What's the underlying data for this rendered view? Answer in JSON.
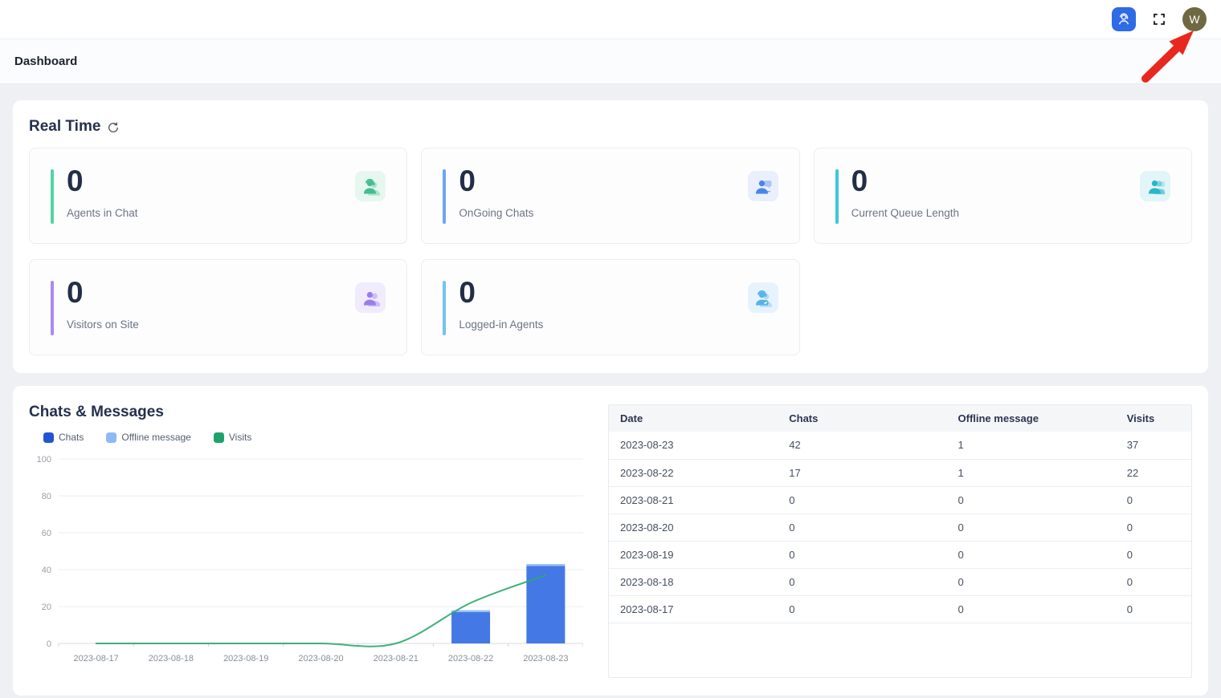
{
  "topbar": {
    "agent_console_button": "agent-console",
    "fullscreen_button": "fullscreen",
    "avatar_initial": "W",
    "avatar_color": "#6e6940",
    "agent_button_color": "#2e6be5"
  },
  "breadcrumb": {
    "title": "Dashboard"
  },
  "annotation": {
    "type": "red-arrow",
    "color": "#e8281e",
    "points_to": "avatar"
  },
  "realtime": {
    "title": "Real Time",
    "cards": [
      {
        "value": "0",
        "label": "Agents in Chat",
        "accent": "#55d3a4",
        "icon": "agent-headset-icon",
        "icon_color": "#44bd92",
        "icon_bg": "#e6f7f0"
      },
      {
        "value": "0",
        "label": "OnGoing Chats",
        "accent": "#6fa5f2",
        "icon": "person-chat-icon",
        "icon_color": "#4a84e8",
        "icon_bg": "#e9effc"
      },
      {
        "value": "0",
        "label": "Current Queue Length",
        "accent": "#3cc8d7",
        "icon": "people-queue-icon",
        "icon_color": "#2ab6c9",
        "icon_bg": "#e2f5f8"
      },
      {
        "value": "0",
        "label": "Visitors on Site",
        "accent": "#a88bf0",
        "icon": "visitors-icon",
        "icon_color": "#9a7cf0",
        "icon_bg": "#f0ebfd"
      },
      {
        "value": "0",
        "label": "Logged-in Agents",
        "accent": "#74c3ee",
        "icon": "agent-check-icon",
        "icon_color": "#57b3e8",
        "icon_bg": "#e7f3fc"
      }
    ]
  },
  "chats_messages": {
    "title": "Chats & Messages",
    "legend": [
      {
        "label": "Chats",
        "color": "#2155d4"
      },
      {
        "label": "Offline message",
        "color": "#8fb9f6"
      },
      {
        "label": "Visits",
        "color": "#1ea26b"
      }
    ],
    "table": {
      "headers": [
        "Date",
        "Chats",
        "Offline message",
        "Visits"
      ],
      "rows": [
        [
          "2023-08-23",
          "42",
          "1",
          "37"
        ],
        [
          "2023-08-22",
          "17",
          "1",
          "22"
        ],
        [
          "2023-08-21",
          "0",
          "0",
          "0"
        ],
        [
          "2023-08-20",
          "0",
          "0",
          "0"
        ],
        [
          "2023-08-19",
          "0",
          "0",
          "0"
        ],
        [
          "2023-08-18",
          "0",
          "0",
          "0"
        ],
        [
          "2023-08-17",
          "0",
          "0",
          "0"
        ]
      ]
    }
  },
  "chart_data": {
    "type": "bar",
    "subtype": "stacked-bars-with-line",
    "categories": [
      "2023-08-17",
      "2023-08-18",
      "2023-08-19",
      "2023-08-20",
      "2023-08-21",
      "2023-08-22",
      "2023-08-23"
    ],
    "series": [
      {
        "name": "Chats",
        "type": "bar",
        "stack": "msgs",
        "color": "#4478e4",
        "values": [
          0,
          0,
          0,
          0,
          0,
          17,
          42
        ]
      },
      {
        "name": "Offline message",
        "type": "bar",
        "stack": "msgs",
        "color": "#92bbf6",
        "values": [
          0,
          0,
          0,
          0,
          0,
          1,
          1
        ]
      },
      {
        "name": "Visits",
        "type": "line",
        "color": "#2ca86a",
        "values": [
          0,
          0,
          0,
          0,
          0,
          22,
          37
        ]
      }
    ],
    "title": "Chats & Messages",
    "xlabel": "",
    "ylabel": "",
    "ylim": [
      0,
      100
    ],
    "yticks": [
      0,
      20,
      40,
      60,
      80,
      100
    ],
    "grid": true,
    "legend_position": "top"
  }
}
